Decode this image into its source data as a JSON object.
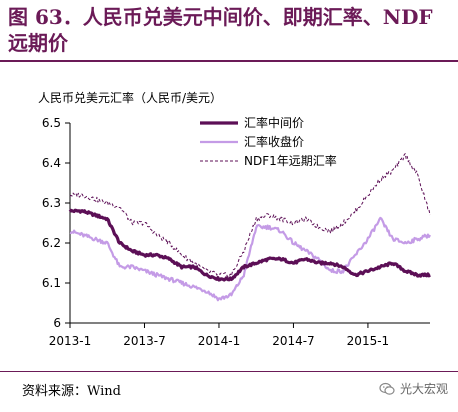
{
  "header": {
    "title": "图 63．人民币兑美元中间价、即期汇率、NDF 远期价"
  },
  "footer": {
    "source": "资料来源：Wind",
    "watermark": "光大宏观"
  },
  "colors": {
    "accent": "#6b1a57",
    "series_mid": "#5c0f56",
    "series_close": "#c49be6",
    "series_ndf": "#5c0f56"
  },
  "icons": {
    "watermark": "wechat-logo-icon"
  },
  "chart_data": {
    "type": "line",
    "title": "",
    "ylabel": "人民币兑美元汇率（人民币/美元）",
    "xlabel": "",
    "ylim": [
      6.0,
      6.5
    ],
    "yticks": [
      "6.5",
      "6.4",
      "6.3",
      "6.2",
      "6.1",
      "6"
    ],
    "xlim": [
      "2013-01",
      "2015-06"
    ],
    "xticks": [
      {
        "x": "2013-01",
        "label": "2013-1"
      },
      {
        "x": "2013-07",
        "label": "2013-7"
      },
      {
        "x": "2014-01",
        "label": "2014-1"
      },
      {
        "x": "2014-07",
        "label": "2014-7"
      },
      {
        "x": "2015-01",
        "label": "2015-1"
      }
    ],
    "grid": false,
    "legend": "top-right",
    "x": [
      "2013-01",
      "2013-02",
      "2013-03",
      "2013-04",
      "2013-05",
      "2013-06",
      "2013-07",
      "2013-08",
      "2013-09",
      "2013-10",
      "2013-11",
      "2013-12",
      "2014-01",
      "2014-02",
      "2014-03",
      "2014-04",
      "2014-05",
      "2014-06",
      "2014-07",
      "2014-08",
      "2014-09",
      "2014-10",
      "2014-11",
      "2014-12",
      "2015-01",
      "2015-02",
      "2015-03",
      "2015-04",
      "2015-05",
      "2015-06"
    ],
    "series": [
      {
        "name": "汇率中间价",
        "style": "thick",
        "values": [
          6.28,
          6.28,
          6.27,
          6.26,
          6.2,
          6.18,
          6.17,
          6.17,
          6.16,
          6.14,
          6.14,
          6.12,
          6.11,
          6.11,
          6.14,
          6.15,
          6.16,
          6.16,
          6.15,
          6.16,
          6.15,
          6.15,
          6.14,
          6.12,
          6.13,
          6.14,
          6.15,
          6.13,
          6.12,
          6.12
        ]
      },
      {
        "name": "汇率收盘价",
        "style": "solid",
        "values": [
          6.23,
          6.22,
          6.21,
          6.2,
          6.14,
          6.14,
          6.13,
          6.12,
          6.11,
          6.1,
          6.09,
          6.08,
          6.06,
          6.07,
          6.12,
          6.24,
          6.24,
          6.23,
          6.2,
          6.18,
          6.16,
          6.13,
          6.13,
          6.17,
          6.21,
          6.26,
          6.21,
          6.2,
          6.21,
          6.22
        ]
      },
      {
        "name": "NDF1年远期汇率",
        "style": "dashed",
        "values": [
          6.32,
          6.32,
          6.31,
          6.3,
          6.29,
          6.25,
          6.25,
          6.22,
          6.2,
          6.17,
          6.15,
          6.13,
          6.12,
          6.12,
          6.18,
          6.26,
          6.27,
          6.26,
          6.25,
          6.26,
          6.24,
          6.23,
          6.25,
          6.28,
          6.32,
          6.36,
          6.38,
          6.42,
          6.37,
          6.27
        ]
      }
    ]
  }
}
